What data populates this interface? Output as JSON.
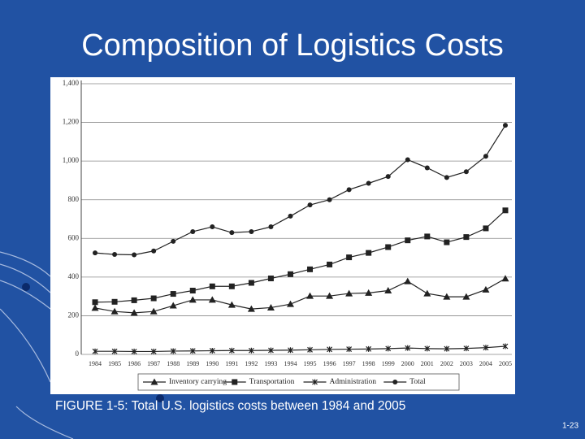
{
  "slide": {
    "title": "Composition of Logistics Costs",
    "caption": "FIGURE 1-5: Total U.S. logistics costs between 1984 and 2005",
    "page": "1-23"
  },
  "chart_data": {
    "type": "line",
    "categories": [
      "1984",
      "1985",
      "1986",
      "1987",
      "1988",
      "1989",
      "1990",
      "1991",
      "1992",
      "1993",
      "1994",
      "1995",
      "1996",
      "1997",
      "1998",
      "1999",
      "2000",
      "2001",
      "2002",
      "2003",
      "2004",
      "2005"
    ],
    "series": [
      {
        "name": "Inventory carrying",
        "color": "#222222",
        "marker": "triangle",
        "values": [
          240,
          222,
          215,
          222,
          252,
          282,
          282,
          256,
          235,
          242,
          260,
          302,
          302,
          315,
          318,
          330,
          378,
          315,
          298,
          298,
          335,
          392
        ]
      },
      {
        "name": "Transportation",
        "color": "#222222",
        "marker": "square",
        "values": [
          270,
          272,
          280,
          290,
          313,
          330,
          352,
          352,
          370,
          393,
          415,
          440,
          465,
          502,
          525,
          555,
          590,
          610,
          580,
          607,
          652,
          745
        ]
      },
      {
        "name": "Administration",
        "color": "#222222",
        "marker": "cross",
        "values": [
          16,
          16,
          15,
          15,
          17,
          18,
          19,
          20,
          20,
          21,
          22,
          24,
          26,
          27,
          28,
          30,
          33,
          30,
          29,
          31,
          35,
          42
        ]
      },
      {
        "name": "Total",
        "color": "#222222",
        "marker": "circle",
        "values": [
          525,
          517,
          515,
          535,
          585,
          635,
          660,
          630,
          635,
          660,
          715,
          773,
          800,
          852,
          885,
          920,
          1007,
          965,
          915,
          945,
          1025,
          1185
        ]
      }
    ],
    "ylim": [
      0,
      1400
    ],
    "yticks": [
      0,
      200,
      400,
      600,
      800,
      {
        "value": 1000,
        "label": "1,000"
      },
      {
        "value": 1200,
        "label": "1,200"
      },
      {
        "value": 1400,
        "label": "1,400"
      }
    ],
    "grid": true,
    "legend": "bottom"
  }
}
